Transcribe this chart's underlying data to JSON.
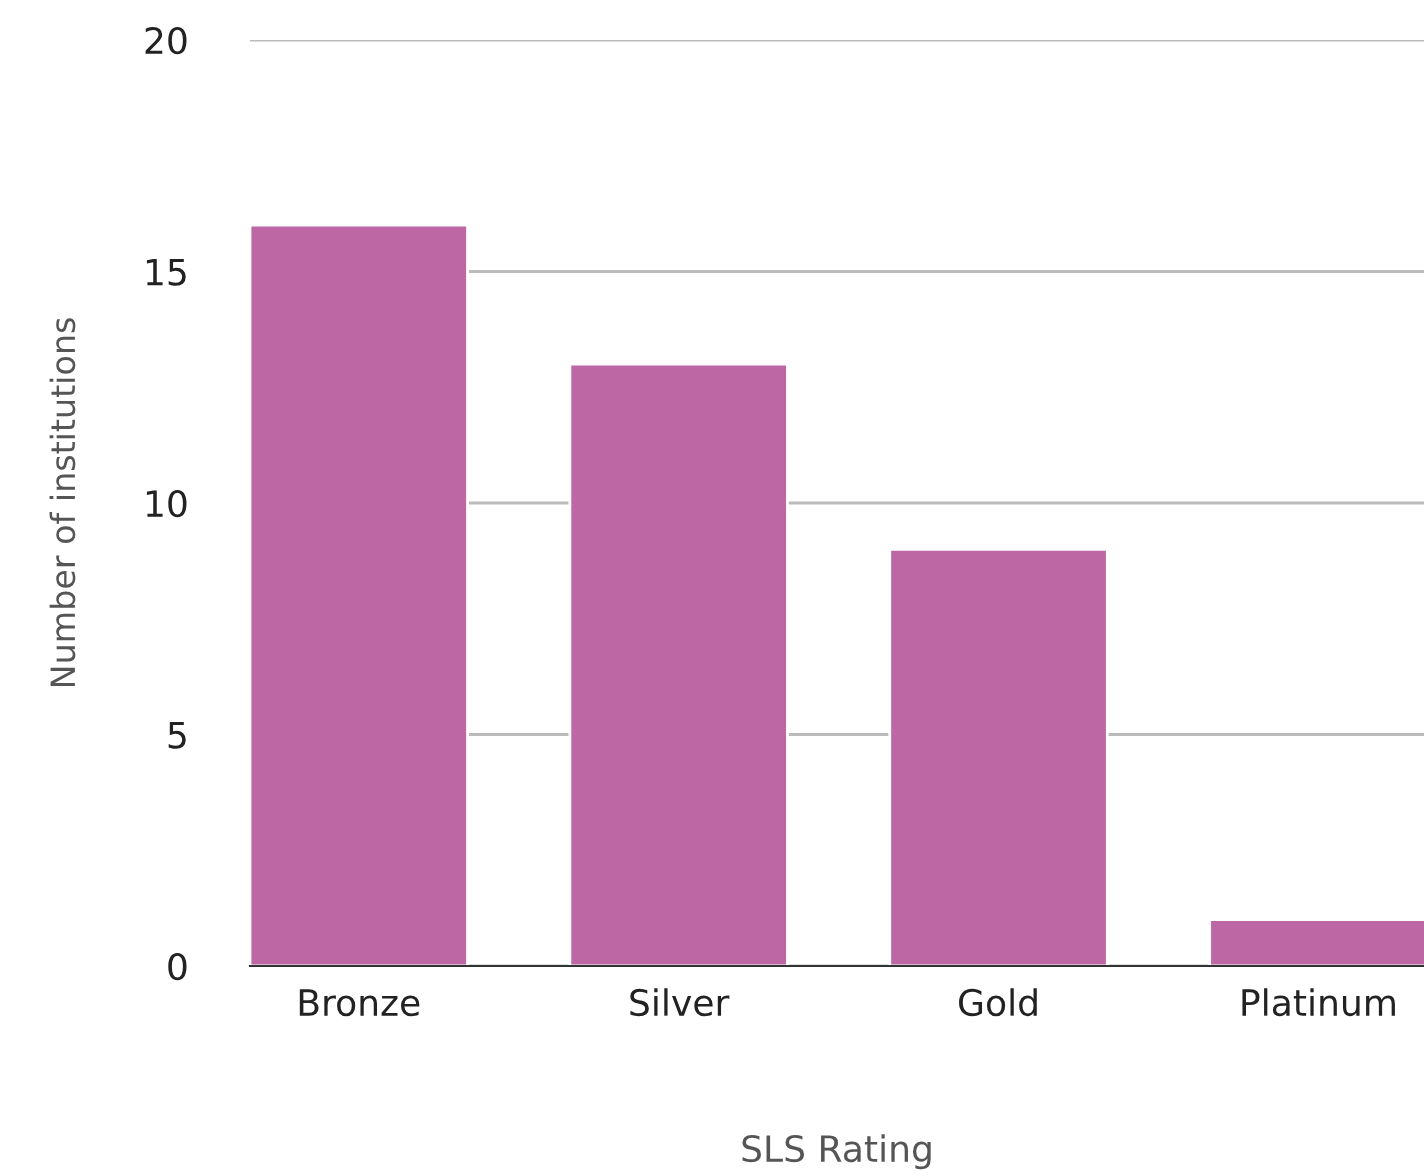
{
  "chart_data": {
    "type": "bar",
    "xlabel": "SLS Rating",
    "ylabel": "Number of institutions",
    "categories": [
      "Bronze",
      "Silver",
      "Gold",
      "Platinum"
    ],
    "values": [
      16,
      13,
      9,
      1
    ],
    "color": "#bd67a4",
    "ylim": [
      0,
      20
    ],
    "yticks": [
      0,
      5,
      10,
      15,
      20
    ],
    "grid": "y",
    "legend": false
  }
}
